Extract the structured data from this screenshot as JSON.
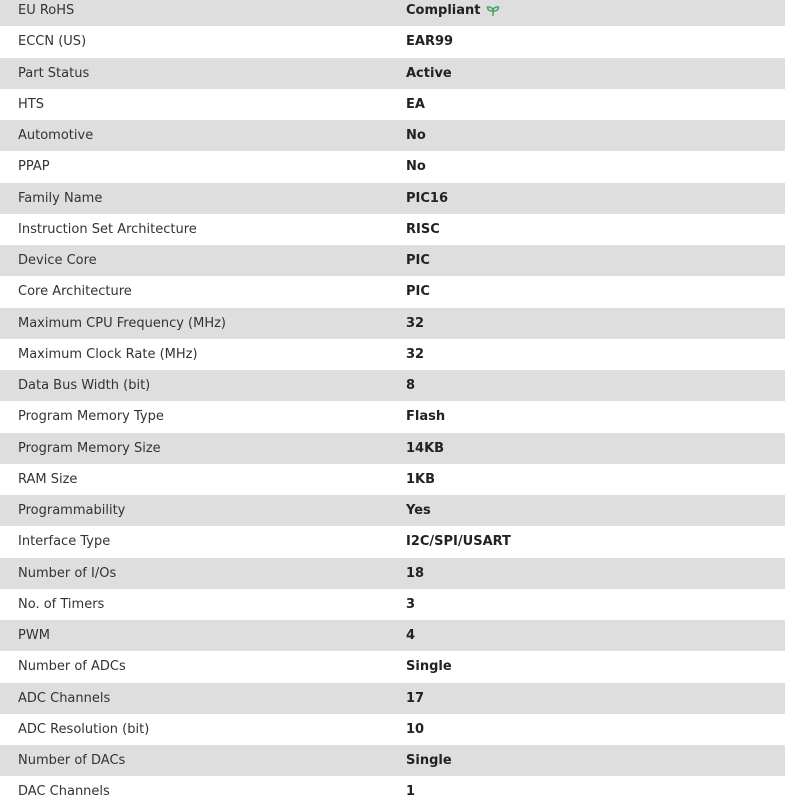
{
  "colors": {
    "row_alt": "#dedede",
    "compliant_icon": "#3aa05a"
  },
  "rows": [
    {
      "label": "EU RoHS",
      "value": "Compliant",
      "icon": "leaf-icon"
    },
    {
      "label": "ECCN (US)",
      "value": "EAR99"
    },
    {
      "label": "Part Status",
      "value": "Active"
    },
    {
      "label": "HTS",
      "value": "EA"
    },
    {
      "label": "Automotive",
      "value": "No"
    },
    {
      "label": "PPAP",
      "value": "No"
    },
    {
      "label": "Family Name",
      "value": "PIC16"
    },
    {
      "label": "Instruction Set Architecture",
      "value": "RISC"
    },
    {
      "label": "Device Core",
      "value": "PIC"
    },
    {
      "label": "Core Architecture",
      "value": "PIC"
    },
    {
      "label": "Maximum CPU Frequency (MHz)",
      "value": "32"
    },
    {
      "label": "Maximum Clock Rate (MHz)",
      "value": "32"
    },
    {
      "label": "Data Bus Width (bit)",
      "value": "8"
    },
    {
      "label": "Program Memory Type",
      "value": "Flash"
    },
    {
      "label": "Program Memory Size",
      "value": "14KB"
    },
    {
      "label": "RAM Size",
      "value": "1KB"
    },
    {
      "label": "Programmability",
      "value": "Yes"
    },
    {
      "label": "Interface Type",
      "value": "I2C/SPI/USART"
    },
    {
      "label": "Number of I/Os",
      "value": "18"
    },
    {
      "label": "No. of Timers",
      "value": "3"
    },
    {
      "label": "PWM",
      "value": "4"
    },
    {
      "label": "Number of ADCs",
      "value": "Single"
    },
    {
      "label": "ADC Channels",
      "value": "17"
    },
    {
      "label": "ADC Resolution (bit)",
      "value": "10"
    },
    {
      "label": "Number of DACs",
      "value": "Single"
    },
    {
      "label": "DAC Channels",
      "value": "1"
    }
  ]
}
